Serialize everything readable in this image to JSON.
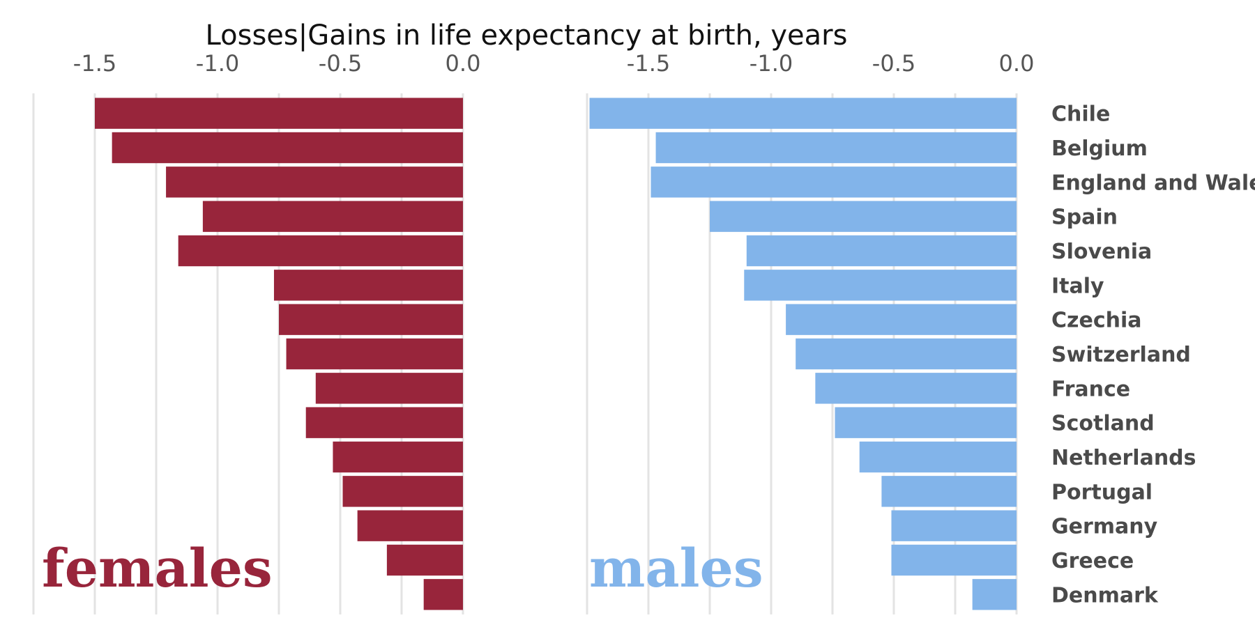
{
  "chart_data": {
    "type": "bar",
    "orientation": "horizontal",
    "title": "Losses|Gains in life expectancy at birth, years",
    "categories": [
      "Chile",
      "Belgium",
      "England and Wales",
      "Spain",
      "Slovenia",
      "Italy",
      "Czechia",
      "Switzerland",
      "France",
      "Scotland",
      "Netherlands",
      "Portugal",
      "Germany",
      "Greece",
      "Denmark"
    ],
    "tick_labels": [
      "-1.5",
      "-1.0",
      "-0.5",
      "0.0"
    ],
    "grid": true,
    "legend": "none",
    "panels": [
      {
        "name": "females",
        "color": "#98253b",
        "xlim": [
          -1.75,
          0
        ],
        "values": [
          -1.5,
          -1.43,
          -1.21,
          -1.06,
          -1.16,
          -0.77,
          -0.75,
          -0.72,
          -0.6,
          -0.64,
          -0.53,
          -0.49,
          -0.43,
          -0.31,
          -0.16
        ]
      },
      {
        "name": "males",
        "color": "#82b4ea",
        "xlim": [
          -1.75,
          0
        ],
        "values": [
          -1.74,
          -1.47,
          -1.49,
          -1.25,
          -1.1,
          -1.11,
          -0.94,
          -0.9,
          -0.82,
          -0.74,
          -0.64,
          -0.55,
          -0.51,
          -0.51,
          -0.18
        ]
      }
    ]
  }
}
